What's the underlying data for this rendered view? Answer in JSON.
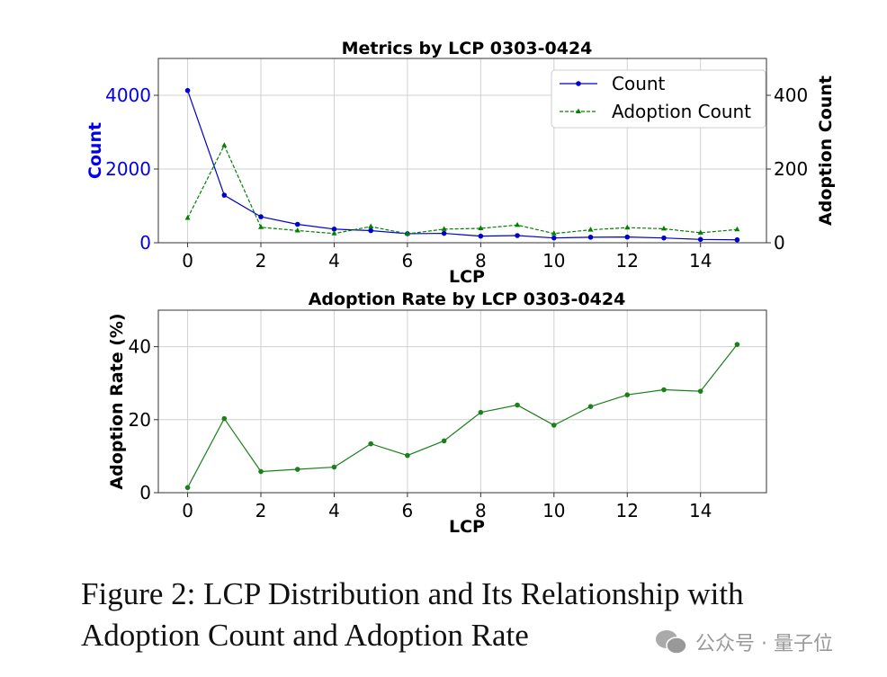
{
  "chart_data": [
    {
      "type": "line",
      "title": "Metrics by LCP 0303-0424",
      "xlabel": "LCP",
      "ylabel": "Count",
      "y2label": "Adoption Count",
      "x": [
        0,
        1,
        2,
        3,
        4,
        5,
        6,
        7,
        8,
        9,
        10,
        11,
        12,
        13,
        14,
        15
      ],
      "xlim": [
        -0.8,
        15.8
      ],
      "ylim": [
        0,
        5000
      ],
      "y2lim": [
        0,
        500
      ],
      "xticks": [
        "0",
        "2",
        "4",
        "6",
        "8",
        "10",
        "12",
        "14"
      ],
      "yticks": [
        "0",
        "2000",
        "4000"
      ],
      "y2ticks": [
        "0",
        "200",
        "400"
      ],
      "grid": true,
      "legend_position": "top-right",
      "series": [
        {
          "name": "Count",
          "axis": "left",
          "color": "#0000cc",
          "style": "solid",
          "marker": "circle",
          "values": [
            4130,
            1290,
            705,
            500,
            370,
            330,
            245,
            255,
            180,
            195,
            130,
            150,
            155,
            130,
            90,
            80
          ]
        },
        {
          "name": "Adoption Count",
          "axis": "right",
          "color": "#008000",
          "style": "dashed",
          "marker": "triangle",
          "values": [
            67,
            264,
            42,
            33,
            25,
            44,
            24,
            37,
            39,
            48,
            25,
            35,
            41,
            38,
            27,
            36
          ]
        }
      ]
    },
    {
      "type": "line",
      "title": "Adoption Rate by LCP 0303-0424",
      "xlabel": "LCP",
      "ylabel": "Adoption Rate (%)",
      "x": [
        0,
        1,
        2,
        3,
        4,
        5,
        6,
        7,
        8,
        9,
        10,
        11,
        12,
        13,
        14,
        15
      ],
      "xlim": [
        -0.8,
        15.8
      ],
      "ylim": [
        0,
        50
      ],
      "xticks": [
        "0",
        "2",
        "4",
        "6",
        "8",
        "10",
        "12",
        "14"
      ],
      "yticks": [
        "0",
        "20",
        "40"
      ],
      "grid": true,
      "series": [
        {
          "name": "Adoption Rate",
          "color": "#1a801a",
          "style": "solid",
          "marker": "circle",
          "values": [
            1.4,
            20.3,
            5.8,
            6.4,
            7.0,
            13.4,
            10.2,
            14.2,
            22.0,
            24.0,
            18.5,
            23.6,
            26.8,
            28.2,
            27.8,
            40.6
          ]
        }
      ]
    }
  ],
  "caption": {
    "line1": "Figure 2: LCP Distribution and Its Relationship with",
    "line2": "Adoption Count and Adoption Rate"
  },
  "watermark": "公众号 · 量子位"
}
